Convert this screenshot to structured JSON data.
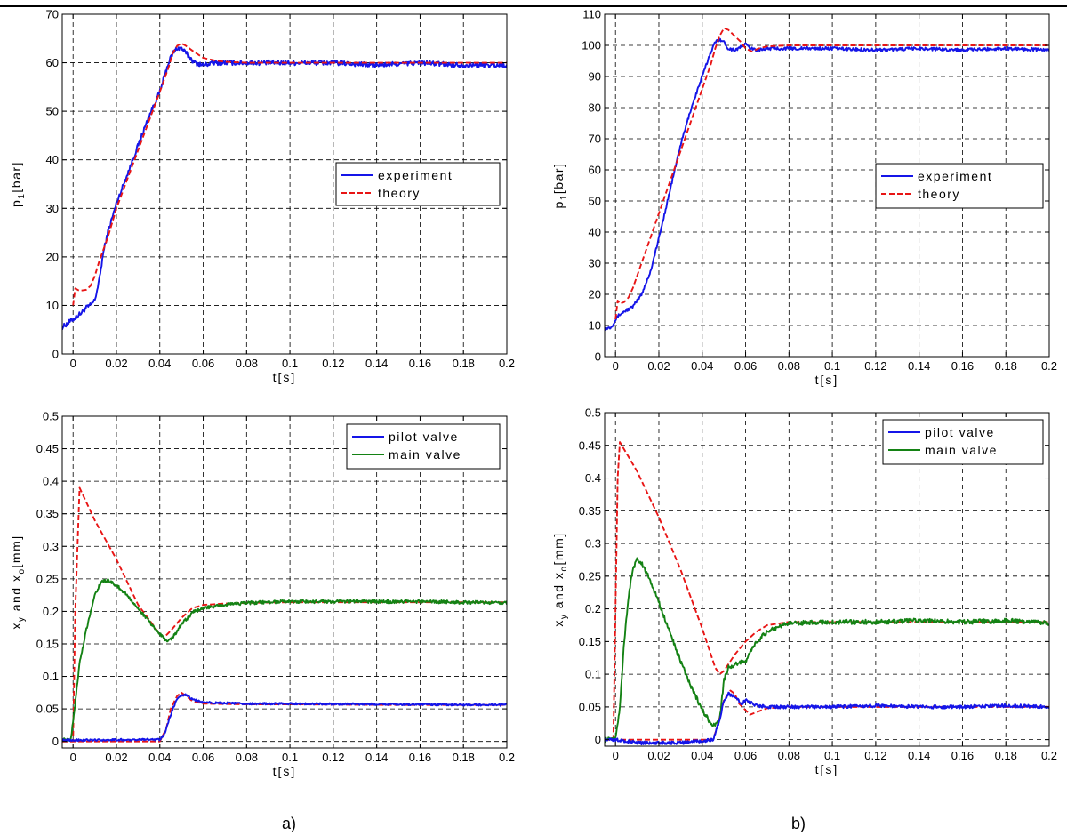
{
  "figure": {
    "captions": [
      "a)",
      "b)"
    ]
  },
  "chart_data": [
    {
      "id": "a-top",
      "type": "line",
      "xlabel": "t[s]",
      "ylabel_main": "p",
      "ylabel_sub": "1",
      "ylabel_rest": "[bar]",
      "xlim": [
        -0.005,
        0.2
      ],
      "ylim": [
        0,
        70
      ],
      "xticks": [
        0,
        0.02,
        0.04,
        0.06,
        0.08,
        0.1,
        0.12,
        0.14,
        0.16,
        0.18,
        0.2
      ],
      "xtick_labels": [
        "0",
        "0.02",
        "0.04",
        "0.06",
        "0.08",
        "0.1",
        "0.12",
        "0.14",
        "0.16",
        "0.18",
        "0.2"
      ],
      "yticks": [
        0,
        10,
        20,
        30,
        40,
        50,
        60,
        70
      ],
      "ytick_labels": [
        "0",
        "10",
        "20",
        "30",
        "40",
        "50",
        "60",
        "70"
      ],
      "grid": true,
      "legend_position": "right",
      "legend": [
        {
          "label": "experiment",
          "color": "#1515e8",
          "dash": "solid"
        },
        {
          "label": "theory",
          "color": "#e81515",
          "dash": "dashed"
        }
      ],
      "series": [
        {
          "color": "#1515e8",
          "dash": "solid",
          "noise": 0.5,
          "x": [
            -0.005,
            -0.002,
            0.001,
            0.004,
            0.006,
            0.008,
            0.01,
            0.012,
            0.014,
            0.016,
            0.018,
            0.02,
            0.025,
            0.03,
            0.035,
            0.04,
            0.044,
            0.046,
            0.048,
            0.05,
            0.052,
            0.054,
            0.056,
            0.06,
            0.065,
            0.07,
            0.08,
            0.1,
            0.12,
            0.14,
            0.16,
            0.18,
            0.2
          ],
          "y": [
            5.5,
            6.5,
            7.5,
            8.5,
            9.5,
            10,
            11,
            15,
            21,
            25,
            28,
            31,
            37,
            43,
            49,
            54,
            60,
            62,
            63,
            63,
            62,
            61,
            60,
            59.5,
            60,
            60,
            60,
            60,
            60,
            59.5,
            60,
            59.5,
            59.5
          ]
        },
        {
          "color": "#e81515",
          "dash": "dashed",
          "noise": 0,
          "x": [
            0,
            0.001,
            0.003,
            0.006,
            0.008,
            0.01,
            0.012,
            0.016,
            0.02,
            0.025,
            0.03,
            0.035,
            0.04,
            0.044,
            0.046,
            0.048,
            0.05,
            0.052,
            0.055,
            0.06,
            0.065,
            0.07,
            0.08,
            0.1,
            0.15,
            0.2
          ],
          "y": [
            10,
            13.5,
            13,
            13.2,
            14,
            16,
            19,
            24,
            30,
            36,
            42,
            48,
            54,
            59,
            62,
            63.5,
            64,
            63.5,
            62.5,
            61,
            60.5,
            60.2,
            60,
            60,
            60,
            60
          ]
        }
      ]
    },
    {
      "id": "b-top",
      "type": "line",
      "xlabel": "t[s]",
      "ylabel_main": "p",
      "ylabel_sub": "1",
      "ylabel_rest": "[bar]",
      "xlim": [
        -0.005,
        0.2
      ],
      "ylim": [
        0,
        110
      ],
      "xticks": [
        0,
        0.02,
        0.04,
        0.06,
        0.08,
        0.1,
        0.12,
        0.14,
        0.16,
        0.18,
        0.2
      ],
      "xtick_labels": [
        "0",
        "0.02",
        "0.04",
        "0.06",
        "0.08",
        "0.1",
        "0.12",
        "0.14",
        "0.16",
        "0.18",
        "0.2"
      ],
      "yticks": [
        0,
        10,
        20,
        30,
        40,
        50,
        60,
        70,
        80,
        90,
        100,
        110
      ],
      "ytick_labels": [
        "0",
        "10",
        "20",
        "30",
        "40",
        "50",
        "60",
        "70",
        "80",
        "90",
        "100",
        "110"
      ],
      "grid": true,
      "legend_position": "right",
      "legend": [
        {
          "label": "experiment",
          "color": "#1515e8",
          "dash": "solid"
        },
        {
          "label": "theory",
          "color": "#e81515",
          "dash": "dashed"
        }
      ],
      "series": [
        {
          "color": "#1515e8",
          "dash": "solid",
          "noise": 0.5,
          "x": [
            -0.005,
            -0.002,
            0.001,
            0.004,
            0.008,
            0.012,
            0.016,
            0.02,
            0.025,
            0.03,
            0.035,
            0.04,
            0.044,
            0.046,
            0.048,
            0.05,
            0.052,
            0.055,
            0.058,
            0.06,
            0.062,
            0.065,
            0.07,
            0.08,
            0.1,
            0.12,
            0.14,
            0.16,
            0.18,
            0.2
          ],
          "y": [
            9,
            9.5,
            13,
            14.5,
            16,
            20,
            27,
            38,
            53,
            68,
            80,
            90,
            98,
            101,
            102,
            101,
            99,
            98.5,
            99.5,
            100.5,
            99,
            98.5,
            99,
            99,
            99,
            98.5,
            99,
            98.5,
            99,
            98.5
          ]
        },
        {
          "color": "#e81515",
          "dash": "dashed",
          "noise": 0,
          "x": [
            0,
            0.001,
            0.002,
            0.004,
            0.006,
            0.008,
            0.012,
            0.016,
            0.02,
            0.025,
            0.03,
            0.035,
            0.04,
            0.044,
            0.046,
            0.048,
            0.05,
            0.052,
            0.055,
            0.058,
            0.06,
            0.063,
            0.066,
            0.07,
            0.08,
            0.1,
            0.15,
            0.2
          ],
          "y": [
            12,
            18,
            17,
            17.5,
            19,
            22,
            30,
            38,
            46,
            56,
            66,
            76,
            86,
            94,
            99,
            103,
            105.5,
            105,
            103,
            101,
            99,
            98,
            99,
            99.7,
            100,
            100,
            100,
            100
          ]
        }
      ]
    },
    {
      "id": "a-bottom",
      "type": "line",
      "xlabel": "t[s]",
      "ylabel_main": "x",
      "ylabel_sub": "y",
      "ylabel_mid": " and x",
      "ylabel_sub2": "o",
      "ylabel_rest": "[mm]",
      "xlim": [
        -0.005,
        0.2
      ],
      "ylim": [
        -0.01,
        0.5
      ],
      "xticks": [
        0,
        0.02,
        0.04,
        0.06,
        0.08,
        0.1,
        0.12,
        0.14,
        0.16,
        0.18,
        0.2
      ],
      "xtick_labels": [
        "0",
        "0.02",
        "0.04",
        "0.06",
        "0.08",
        "0.1",
        "0.12",
        "0.14",
        "0.16",
        "0.18",
        "0.2"
      ],
      "yticks": [
        0,
        0.05,
        0.1,
        0.15,
        0.2,
        0.25,
        0.3,
        0.35,
        0.4,
        0.45,
        0.5
      ],
      "ytick_labels": [
        "0",
        "0.05",
        "0.1",
        "0.15",
        "0.2",
        "0.25",
        "0.3",
        "0.35",
        "0.4",
        "0.45",
        "0.5"
      ],
      "grid": true,
      "legend_position": "top-right",
      "legend": [
        {
          "label": "pilot valve",
          "color": "#1515e8",
          "dash": "solid"
        },
        {
          "label": "main valve",
          "color": "#148214",
          "dash": "solid"
        }
      ],
      "series": [
        {
          "color": "#e81515",
          "dash": "dashed",
          "noise": 0,
          "x": [
            -0.005,
            0,
            0.001,
            0.003,
            0.01,
            0.02,
            0.03,
            0.04,
            0.042,
            0.045,
            0.05,
            0.055,
            0.06,
            0.07,
            0.08,
            0.1,
            0.15,
            0.2
          ],
          "y": [
            0,
            0,
            0.2,
            0.39,
            0.34,
            0.28,
            0.21,
            0.165,
            0.16,
            0.17,
            0.19,
            0.205,
            0.21,
            0.212,
            0.213,
            0.214,
            0.214,
            0.214
          ]
        },
        {
          "color": "#e81515",
          "dash": "dashed",
          "noise": 0,
          "x": [
            -0.005,
            0.04,
            0.043,
            0.045,
            0.048,
            0.05,
            0.052,
            0.055,
            0.06,
            0.08,
            0.1,
            0.15,
            0.2
          ],
          "y": [
            0,
            0,
            0.02,
            0.05,
            0.07,
            0.075,
            0.07,
            0.062,
            0.058,
            0.057,
            0.057,
            0.056,
            0.056
          ]
        },
        {
          "color": "#148214",
          "dash": "solid",
          "noise": 0.0025,
          "x": [
            -0.005,
            -0.001,
            0.001,
            0.003,
            0.006,
            0.01,
            0.013,
            0.016,
            0.02,
            0.025,
            0.03,
            0.035,
            0.04,
            0.042,
            0.044,
            0.046,
            0.05,
            0.055,
            0.06,
            0.07,
            0.08,
            0.1,
            0.12,
            0.14,
            0.16,
            0.18,
            0.2
          ],
          "y": [
            0.003,
            0.003,
            0.06,
            0.12,
            0.17,
            0.225,
            0.245,
            0.248,
            0.24,
            0.225,
            0.205,
            0.185,
            0.165,
            0.158,
            0.155,
            0.16,
            0.18,
            0.198,
            0.205,
            0.21,
            0.213,
            0.215,
            0.215,
            0.215,
            0.215,
            0.214,
            0.213
          ]
        },
        {
          "color": "#1515e8",
          "dash": "solid",
          "noise": 0.0015,
          "x": [
            -0.005,
            0.04,
            0.042,
            0.044,
            0.046,
            0.048,
            0.05,
            0.052,
            0.055,
            0.06,
            0.08,
            0.1,
            0.15,
            0.2
          ],
          "y": [
            0.002,
            0.003,
            0.01,
            0.03,
            0.05,
            0.065,
            0.07,
            0.072,
            0.065,
            0.06,
            0.058,
            0.058,
            0.057,
            0.056
          ]
        }
      ]
    },
    {
      "id": "b-bottom",
      "type": "line",
      "xlabel": "t[s]",
      "ylabel_main": "x",
      "ylabel_sub": "y",
      "ylabel_mid": " and x",
      "ylabel_sub2": "o",
      "ylabel_rest": "[mm]",
      "xlim": [
        -0.005,
        0.2
      ],
      "ylim": [
        -0.01,
        0.5
      ],
      "xticks": [
        0,
        0.02,
        0.04,
        0.06,
        0.08,
        0.1,
        0.12,
        0.14,
        0.16,
        0.18,
        0.2
      ],
      "xtick_labels": [
        "0",
        "0.02",
        "0.04",
        "0.06",
        "0.08",
        "0.1",
        "0.12",
        "0.14",
        "0.16",
        "0.18",
        "0.2"
      ],
      "yticks": [
        0,
        0.05,
        0.1,
        0.15,
        0.2,
        0.25,
        0.3,
        0.35,
        0.4,
        0.45,
        0.5
      ],
      "ytick_labels": [
        "0",
        "0.05",
        "0.1",
        "0.15",
        "0.2",
        "0.25",
        "0.3",
        "0.35",
        "0.4",
        "0.45",
        "0.5"
      ],
      "grid": true,
      "legend_position": "top-right",
      "legend": [
        {
          "label": "pilot valve",
          "color": "#1515e8",
          "dash": "solid"
        },
        {
          "label": "main valve",
          "color": "#148214",
          "dash": "solid"
        }
      ],
      "series": [
        {
          "color": "#e81515",
          "dash": "dashed",
          "noise": 0,
          "x": [
            -0.005,
            -0.001,
            0.0,
            0.001,
            0.002,
            0.01,
            0.02,
            0.03,
            0.04,
            0.046,
            0.048,
            0.05,
            0.055,
            0.06,
            0.065,
            0.07,
            0.08,
            0.1,
            0.15,
            0.2
          ],
          "y": [
            0,
            0,
            0.2,
            0.4,
            0.455,
            0.41,
            0.34,
            0.26,
            0.17,
            0.11,
            0.1,
            0.105,
            0.13,
            0.15,
            0.165,
            0.175,
            0.18,
            0.18,
            0.18,
            0.18
          ]
        },
        {
          "color": "#e81515",
          "dash": "dashed",
          "noise": 0,
          "x": [
            -0.005,
            0.045,
            0.047,
            0.05,
            0.053,
            0.055,
            0.057,
            0.06,
            0.062,
            0.065,
            0.07,
            0.08,
            0.1,
            0.15,
            0.2
          ],
          "y": [
            0,
            0,
            0.02,
            0.06,
            0.075,
            0.07,
            0.055,
            0.045,
            0.038,
            0.042,
            0.048,
            0.05,
            0.05,
            0.05,
            0.05
          ]
        },
        {
          "color": "#148214",
          "dash": "solid",
          "noise": 0.0035,
          "x": [
            -0.005,
            0.0,
            0.002,
            0.004,
            0.006,
            0.008,
            0.01,
            0.012,
            0.015,
            0.02,
            0.025,
            0.03,
            0.035,
            0.04,
            0.045,
            0.048,
            0.05,
            0.052,
            0.055,
            0.06,
            0.065,
            0.07,
            0.08,
            0.1,
            0.12,
            0.14,
            0.16,
            0.18,
            0.2
          ],
          "y": [
            0,
            0,
            0.05,
            0.15,
            0.22,
            0.26,
            0.275,
            0.27,
            0.25,
            0.21,
            0.165,
            0.12,
            0.08,
            0.045,
            0.02,
            0.03,
            0.09,
            0.11,
            0.115,
            0.12,
            0.15,
            0.165,
            0.178,
            0.18,
            0.18,
            0.182,
            0.18,
            0.182,
            0.178
          ]
        },
        {
          "color": "#1515e8",
          "dash": "solid",
          "noise": 0.0025,
          "x": [
            -0.005,
            0.0,
            0.01,
            0.03,
            0.045,
            0.048,
            0.05,
            0.052,
            0.055,
            0.058,
            0.06,
            0.065,
            0.07,
            0.08,
            0.1,
            0.12,
            0.14,
            0.16,
            0.18,
            0.2
          ],
          "y": [
            0.0,
            0.0,
            -0.005,
            -0.005,
            0.0,
            0.03,
            0.06,
            0.07,
            0.065,
            0.055,
            0.06,
            0.052,
            0.05,
            0.05,
            0.05,
            0.052,
            0.05,
            0.05,
            0.052,
            0.05
          ]
        }
      ]
    }
  ]
}
